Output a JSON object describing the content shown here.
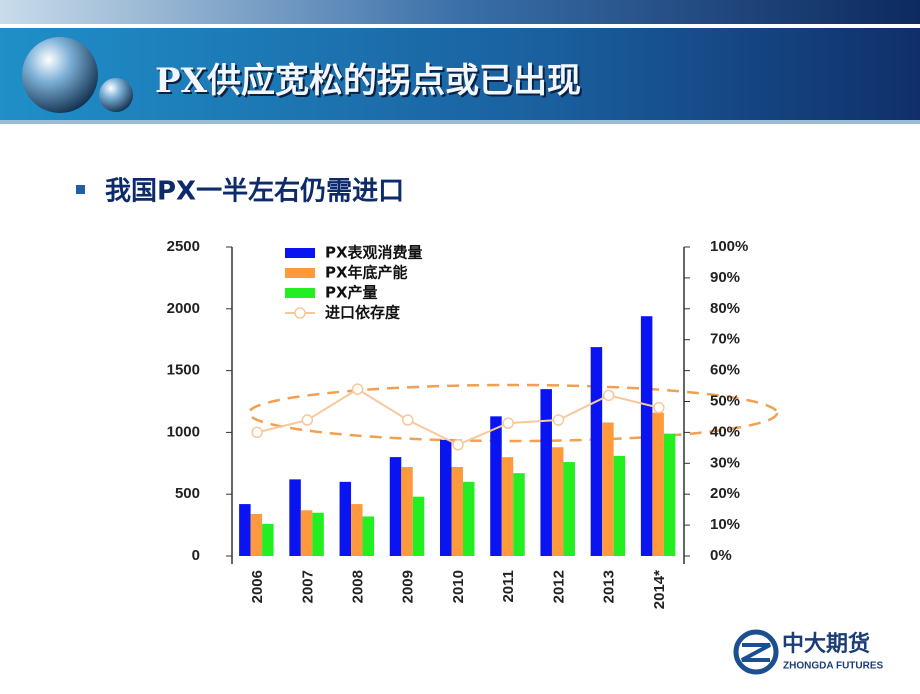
{
  "header": {
    "title": "PX供应宽松的拐点或已出现",
    "bullet": "我国PX一半左右仍需进口"
  },
  "logo": {
    "name": "中大期货",
    "subtitle": "ZHONGDA FUTURES"
  },
  "chart_data": {
    "type": "bar",
    "categories": [
      "2006",
      "2007",
      "2008",
      "2009",
      "2010",
      "2011",
      "2012",
      "2013",
      "2014*"
    ],
    "series": [
      {
        "name": "PX表观消费量",
        "color": "#0a14f0",
        "values": [
          420,
          620,
          600,
          800,
          940,
          1130,
          1350,
          1690,
          1940
        ]
      },
      {
        "name": "PX年底产能",
        "color": "#ff9a3c",
        "values": [
          340,
          370,
          420,
          720,
          720,
          800,
          880,
          1080,
          1160
        ]
      },
      {
        "name": "PX产量",
        "color": "#22ee22",
        "values": [
          260,
          350,
          320,
          480,
          600,
          670,
          760,
          810,
          990
        ]
      },
      {
        "name": "进口依存度",
        "color": "#f8c89a",
        "type": "line",
        "axis": "y2",
        "values": [
          40,
          44,
          54,
          44,
          36,
          43,
          44,
          52,
          48
        ]
      }
    ],
    "ylim": [
      0,
      2500
    ],
    "yticks": [
      0,
      500,
      1000,
      1500,
      2000,
      2500
    ],
    "y2lim": [
      0,
      100
    ],
    "y2ticks": [
      {
        "value": 0,
        "label": "0%"
      },
      {
        "value": 10,
        "label": "10%"
      },
      {
        "value": 20,
        "label": "20%"
      },
      {
        "value": 30,
        "label": "30%"
      },
      {
        "value": 40,
        "label": "40%"
      },
      {
        "value": 50,
        "label": "50%"
      },
      {
        "value": 60,
        "label": "60%"
      },
      {
        "value": 70,
        "label": "70%"
      },
      {
        "value": 80,
        "label": "80%"
      },
      {
        "value": 90,
        "label": "90%"
      },
      {
        "value": 100,
        "label": "100%"
      }
    ],
    "legend": "top-left"
  }
}
